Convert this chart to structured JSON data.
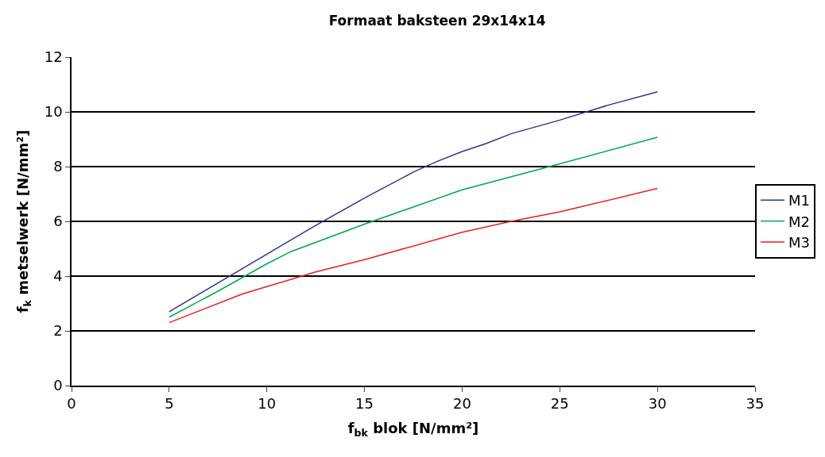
{
  "chart_data": {
    "type": "line",
    "title": "Formaat baksteen 29x14x14",
    "xlabel": "f$_{bk}$ blok [N/mm²]",
    "ylabel": "f$_{k}$ metselwerk [N/mm²]",
    "xlim": [
      0,
      35
    ],
    "xticks": [
      0,
      5,
      10,
      15,
      20,
      25,
      30,
      35
    ],
    "ylim": [
      0,
      12
    ],
    "yticks": [
      0,
      2,
      4,
      6,
      8,
      10,
      12
    ],
    "grid": "y",
    "legend": "right",
    "marker": "none",
    "line_style": "solid",
    "series": [
      {
        "name": "M1",
        "color": "#2e3192",
        "x": [
          5,
          7.5,
          10,
          12.5,
          15,
          17.5,
          18.75,
          20,
          21.25,
          22.5,
          25,
          27.5,
          30
        ],
        "values": [
          2.7,
          3.75,
          4.8,
          5.85,
          6.85,
          7.8,
          8.2,
          8.55,
          8.85,
          9.2,
          9.7,
          10.25,
          10.73
        ]
      },
      {
        "name": "M2",
        "color": "#00a651",
        "x": [
          5,
          7.5,
          10,
          11.25,
          15,
          20,
          25,
          30
        ],
        "values": [
          2.5,
          3.45,
          4.45,
          4.9,
          5.9,
          7.15,
          8.1,
          9.07
        ]
      },
      {
        "name": "M3",
        "color": "#ed1c24",
        "x": [
          5,
          8.75,
          12.5,
          15,
          20,
          22.5,
          25,
          30
        ],
        "values": [
          2.3,
          3.35,
          4.15,
          4.6,
          5.6,
          6.0,
          6.35,
          7.2
        ]
      }
    ]
  }
}
